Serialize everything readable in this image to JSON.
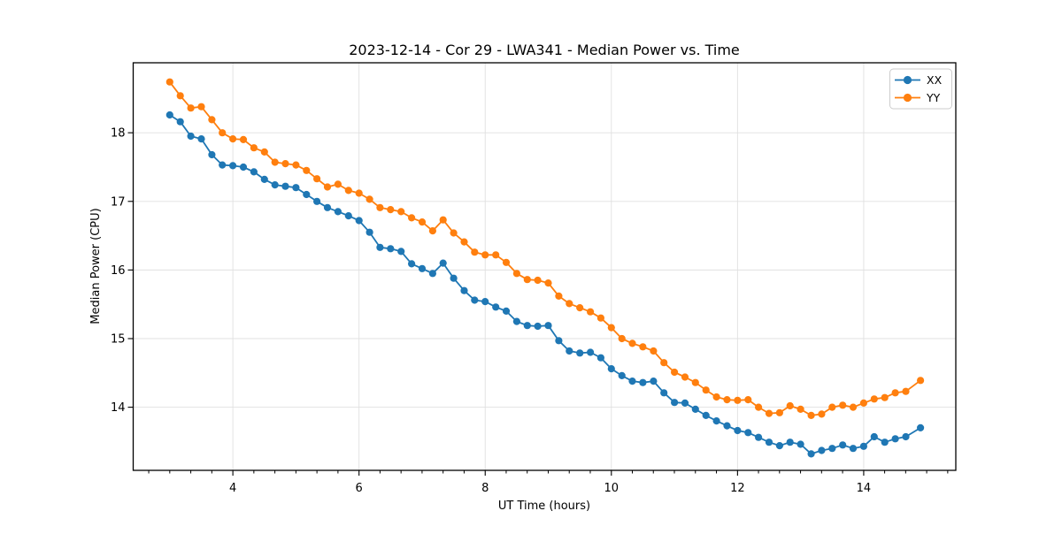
{
  "figure": {
    "background": "#ffffff",
    "title": "2023-12-14 - Cor 29 - LWA341 - Median Power vs. Time"
  },
  "legend": {
    "entries": [
      {
        "label": "XX",
        "color": "#1f77b4"
      },
      {
        "label": "YY",
        "color": "#ff7f0e"
      }
    ]
  },
  "chart_data": {
    "type": "line",
    "title": "2023-12-14 - Cor 29 - LWA341 - Median Power vs. Time",
    "xlabel": "UT Time (hours)",
    "ylabel": "Median Power (CPU)",
    "xlim": [
      2.42,
      15.46
    ],
    "ylim": [
      13.08,
      19.02
    ],
    "xticks": [
      4,
      6,
      8,
      10,
      12,
      14
    ],
    "yticks": [
      14,
      15,
      16,
      17,
      18
    ],
    "minor_xtick_step": 0.3333,
    "grid": true,
    "grid_color": "#e0e0e0",
    "legend_position": "upper right",
    "marker": "o",
    "x": [
      3.0,
      3.167,
      3.333,
      3.5,
      3.667,
      3.833,
      4.0,
      4.167,
      4.333,
      4.5,
      4.667,
      4.833,
      5.0,
      5.167,
      5.333,
      5.5,
      5.667,
      5.833,
      6.0,
      6.167,
      6.333,
      6.5,
      6.667,
      6.833,
      7.0,
      7.167,
      7.333,
      7.5,
      7.667,
      7.833,
      8.0,
      8.167,
      8.333,
      8.5,
      8.667,
      8.833,
      9.0,
      9.167,
      9.333,
      9.5,
      9.667,
      9.833,
      10.0,
      10.167,
      10.333,
      10.5,
      10.667,
      10.833,
      11.0,
      11.167,
      11.333,
      11.5,
      11.667,
      11.833,
      12.0,
      12.167,
      12.333,
      12.5,
      12.667,
      12.833,
      13.0,
      13.167,
      13.333,
      13.5,
      13.667,
      13.833,
      14.0,
      14.167,
      14.333,
      14.5,
      14.667,
      14.9
    ],
    "series": [
      {
        "name": "XX",
        "color": "#1f77b4",
        "values": [
          18.26,
          18.16,
          17.95,
          17.91,
          17.68,
          17.53,
          17.52,
          17.5,
          17.43,
          17.32,
          17.24,
          17.22,
          17.2,
          17.1,
          17.0,
          16.91,
          16.85,
          16.79,
          16.72,
          16.55,
          16.33,
          16.31,
          16.27,
          16.09,
          16.02,
          15.95,
          16.1,
          15.88,
          15.7,
          15.56,
          15.54,
          15.46,
          15.4,
          15.25,
          15.19,
          15.18,
          15.19,
          14.97,
          14.82,
          14.79,
          14.8,
          14.72,
          14.56,
          14.46,
          14.38,
          14.36,
          14.38,
          14.21,
          14.07,
          14.06,
          13.97,
          13.88,
          13.8,
          13.73,
          13.66,
          13.63,
          13.56,
          13.49,
          13.44,
          13.49,
          13.46,
          13.32,
          13.37,
          13.4,
          13.45,
          13.4,
          13.43,
          13.57,
          13.49,
          13.54,
          13.57,
          13.7
        ]
      },
      {
        "name": "YY",
        "color": "#ff7f0e",
        "values": [
          18.74,
          18.54,
          18.36,
          18.38,
          18.19,
          18.0,
          17.91,
          17.9,
          17.78,
          17.72,
          17.57,
          17.55,
          17.53,
          17.45,
          17.33,
          17.21,
          17.25,
          17.16,
          17.12,
          17.03,
          16.91,
          16.88,
          16.85,
          16.76,
          16.7,
          16.57,
          16.73,
          16.54,
          16.41,
          16.26,
          16.22,
          16.22,
          16.11,
          15.95,
          15.86,
          15.85,
          15.81,
          15.62,
          15.51,
          15.45,
          15.39,
          15.3,
          15.16,
          15.0,
          14.93,
          14.88,
          14.82,
          14.65,
          14.51,
          14.44,
          14.36,
          14.25,
          14.15,
          14.11,
          14.1,
          14.11,
          14.0,
          13.91,
          13.92,
          14.02,
          13.97,
          13.88,
          13.9,
          14.0,
          14.03,
          14.0,
          14.06,
          14.12,
          14.14,
          14.21,
          14.23,
          14.39
        ]
      }
    ]
  }
}
